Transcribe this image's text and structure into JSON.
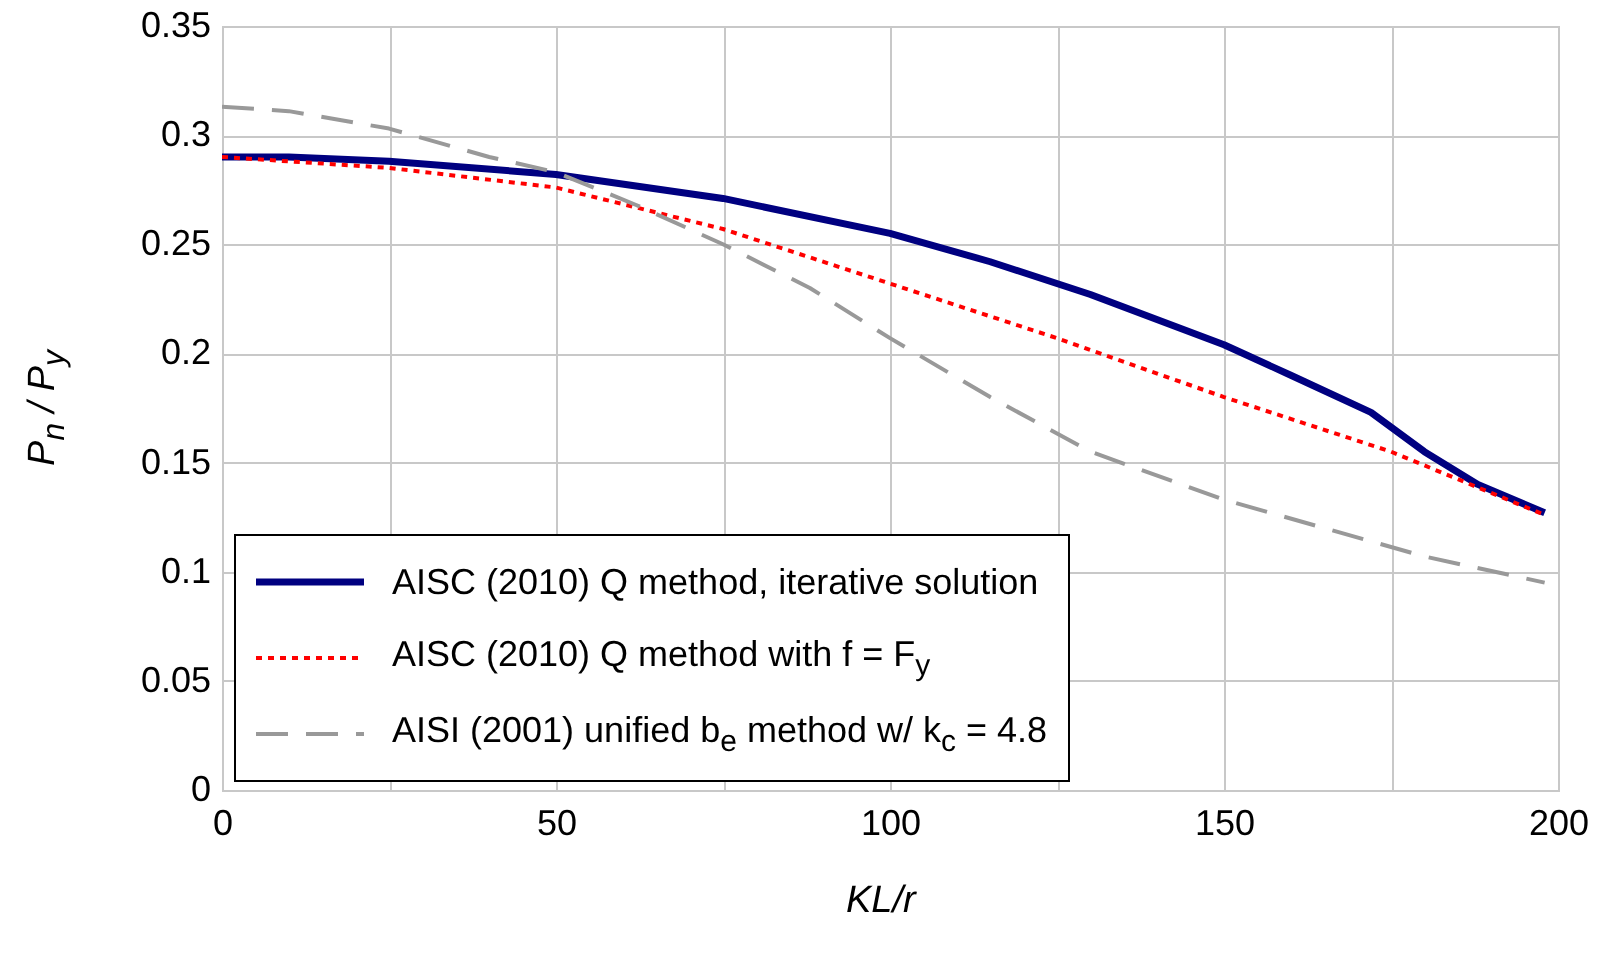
{
  "chart_data": {
    "type": "line",
    "xlabel": "KL/r",
    "ylabel": "P$_{n}$ / P$_{y}$",
    "xlim": [
      0,
      200
    ],
    "xticks": [
      0,
      {
        "value": 25,
        "label": null
      },
      50,
      {
        "value": 75,
        "label": null
      },
      100,
      {
        "value": 125,
        "label": null
      },
      150,
      {
        "value": 175,
        "label": null
      },
      200
    ],
    "ylim": [
      0,
      0.35
    ],
    "yticks": [
      0,
      0.05,
      0.1,
      0.15,
      0.2,
      0.25,
      0.3,
      0.35
    ],
    "grid": true,
    "legend": "bottom left",
    "marker": "none",
    "series": [
      {
        "name": "AISC (2010) Q method, iterative solution",
        "color": "#000080",
        "line_style": "solid",
        "x": [
          0,
          10,
          25,
          50,
          75,
          100,
          115,
          130,
          150,
          160,
          172,
          180,
          188,
          198
        ],
        "values": [
          0.29,
          0.29,
          0.288,
          0.282,
          0.271,
          0.255,
          0.242,
          0.227,
          0.204,
          0.19,
          0.173,
          0.155,
          0.14,
          0.127
        ]
      },
      {
        "name": "AISC (2010) Q method with f = F$_{y}$",
        "color": "#ff0000",
        "line_style": "dotted",
        "x": [
          0,
          25,
          50,
          75,
          100,
          125,
          150,
          175,
          198
        ],
        "values": [
          0.29,
          0.285,
          0.276,
          0.257,
          0.232,
          0.207,
          0.18,
          0.155,
          0.126
        ]
      },
      {
        "name": "AISI (2001) unified b$_{e}$ method w/ k$_{c}$ = 4.8",
        "color": "#999999",
        "line_style": "dashed",
        "x": [
          0,
          10,
          25,
          40,
          50,
          62,
          75,
          88,
          100,
          115,
          130,
          150,
          165,
          180,
          198
        ],
        "values": [
          0.313,
          0.311,
          0.303,
          0.29,
          0.283,
          0.268,
          0.25,
          0.23,
          0.207,
          0.18,
          0.155,
          0.133,
          0.12,
          0.107,
          0.095
        ]
      }
    ]
  }
}
